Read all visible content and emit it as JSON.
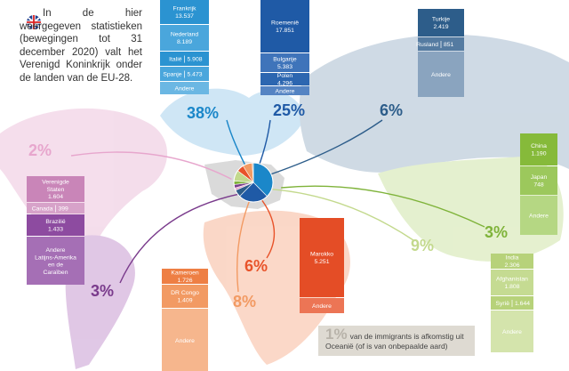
{
  "note": "In de hier weergegeven statistieken (bewegingen tot 31 december 2020) valt het Verenigd Koninkrijk onder de landen van de EU-28.",
  "regions": [
    {
      "share": 38,
      "share_label": "38%",
      "color": "#1b87c9",
      "rows": [
        {
          "name": "Frankrijk",
          "value": "13.537"
        },
        {
          "name": "Nederland",
          "value": "8.189"
        },
        {
          "name": "Italië",
          "value": "5.908"
        },
        {
          "name": "Spanje",
          "value": "5.473"
        },
        {
          "name": "Andere"
        }
      ]
    },
    {
      "share": 25,
      "share_label": "25%",
      "color": "#1f5aa6",
      "rows": [
        {
          "name": "Roemenië",
          "value": "17.851"
        },
        {
          "name": "Bulgarije",
          "value": "5.383"
        },
        {
          "name": "Polen",
          "value": "4.296"
        },
        {
          "name": "Andere"
        }
      ]
    },
    {
      "share": 6,
      "share_label": "6%",
      "color": "#2d5d8a",
      "rows": [
        {
          "name": "Turkije",
          "value": "2.419"
        },
        {
          "name": "Rusland",
          "value": "851"
        },
        {
          "name": "Andere"
        }
      ]
    },
    {
      "share": 2,
      "share_label": "2%",
      "color": "#e7a6cd",
      "rows": [
        {
          "name": "Verenigde Staten",
          "value": "1.604"
        },
        {
          "name": "Canada",
          "value": "399"
        }
      ]
    },
    {
      "share": 3,
      "share_label": "3%",
      "color": "#7a3b8c",
      "rows": [
        {
          "name": "Brazilië",
          "value": "1.433"
        },
        {
          "name": "Andere Latijns-Amerika en de Caraïben"
        }
      ]
    },
    {
      "share": 3,
      "share_label": "3%",
      "color": "#7fb33a",
      "rows": [
        {
          "name": "China",
          "value": "1.190"
        },
        {
          "name": "Japan",
          "value": "748"
        },
        {
          "name": "Andere"
        }
      ]
    },
    {
      "share": 9,
      "share_label": "9%",
      "color": "#c3d98d",
      "rows": [
        {
          "name": "India",
          "value": "2.306"
        },
        {
          "name": "Afghanistan",
          "value": "1.808"
        },
        {
          "name": "Syrië",
          "value": "1.644"
        },
        {
          "name": "Andere"
        }
      ]
    },
    {
      "share": 6,
      "share_label": "6%",
      "color": "#e8532a",
      "rows": [
        {
          "name": "Marokko",
          "value": "5.251"
        },
        {
          "name": "Andere"
        }
      ]
    },
    {
      "share": 8,
      "share_label": "8%",
      "color": "#f29a63",
      "rows": [
        {
          "name": "Kameroen",
          "value": "1.726"
        },
        {
          "name": "DR Congo",
          "value": "1.409"
        },
        {
          "name": "Andere"
        }
      ]
    }
  ],
  "oceania": {
    "share": 1,
    "share_label": "1%",
    "text": "van de immigrants is afkomstig uit Oceanië (of is van onbepaalde aard)"
  }
}
